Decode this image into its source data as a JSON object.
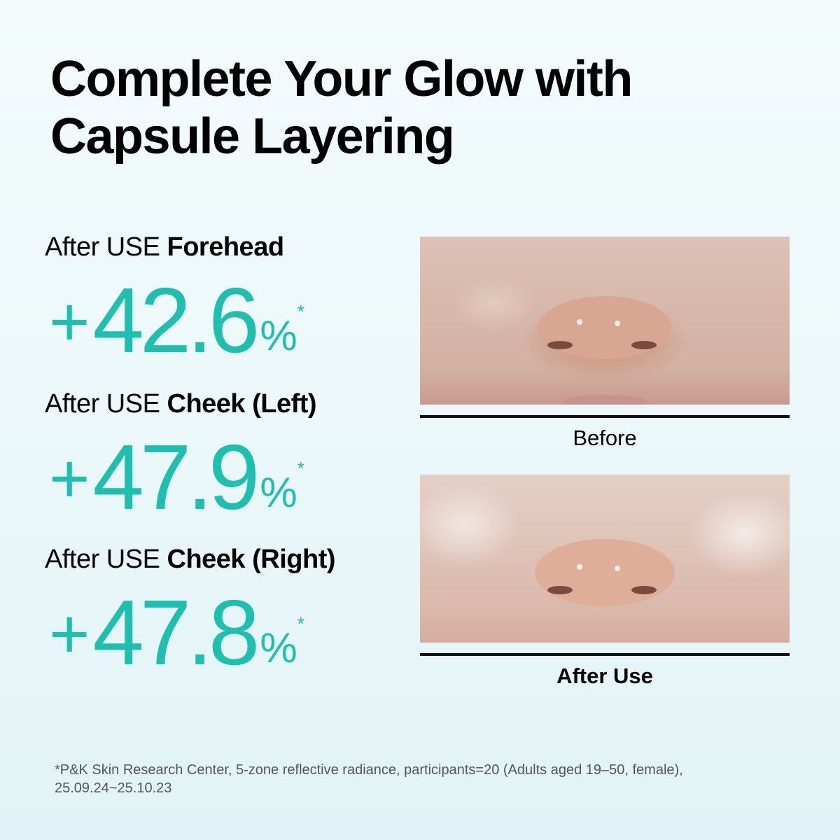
{
  "title": {
    "line1": "Complete Your Glow with",
    "line2": "Capsule Layering"
  },
  "accent_color": "#1fbfb0",
  "stats": [
    {
      "prefix": "After USE ",
      "area": "Forehead",
      "plus": "+",
      "value": "42.6",
      "unit": "%",
      "mark": "*"
    },
    {
      "prefix": "After USE ",
      "area": "Cheek (Left)",
      "plus": "+",
      "value": "47.9",
      "unit": "%",
      "mark": "*"
    },
    {
      "prefix": "After USE ",
      "area": "Cheek (Right)",
      "plus": "+",
      "value": "47.8",
      "unit": "%",
      "mark": "*"
    }
  ],
  "photos": {
    "before_caption": "Before",
    "after_caption": "After Use"
  },
  "footnote": {
    "line1": "*P&K Skin Research Center, 5-zone reflective radiance, participants=20 (Adults aged 19–50, female),",
    "line2": "25.09.24~25.10.23"
  }
}
